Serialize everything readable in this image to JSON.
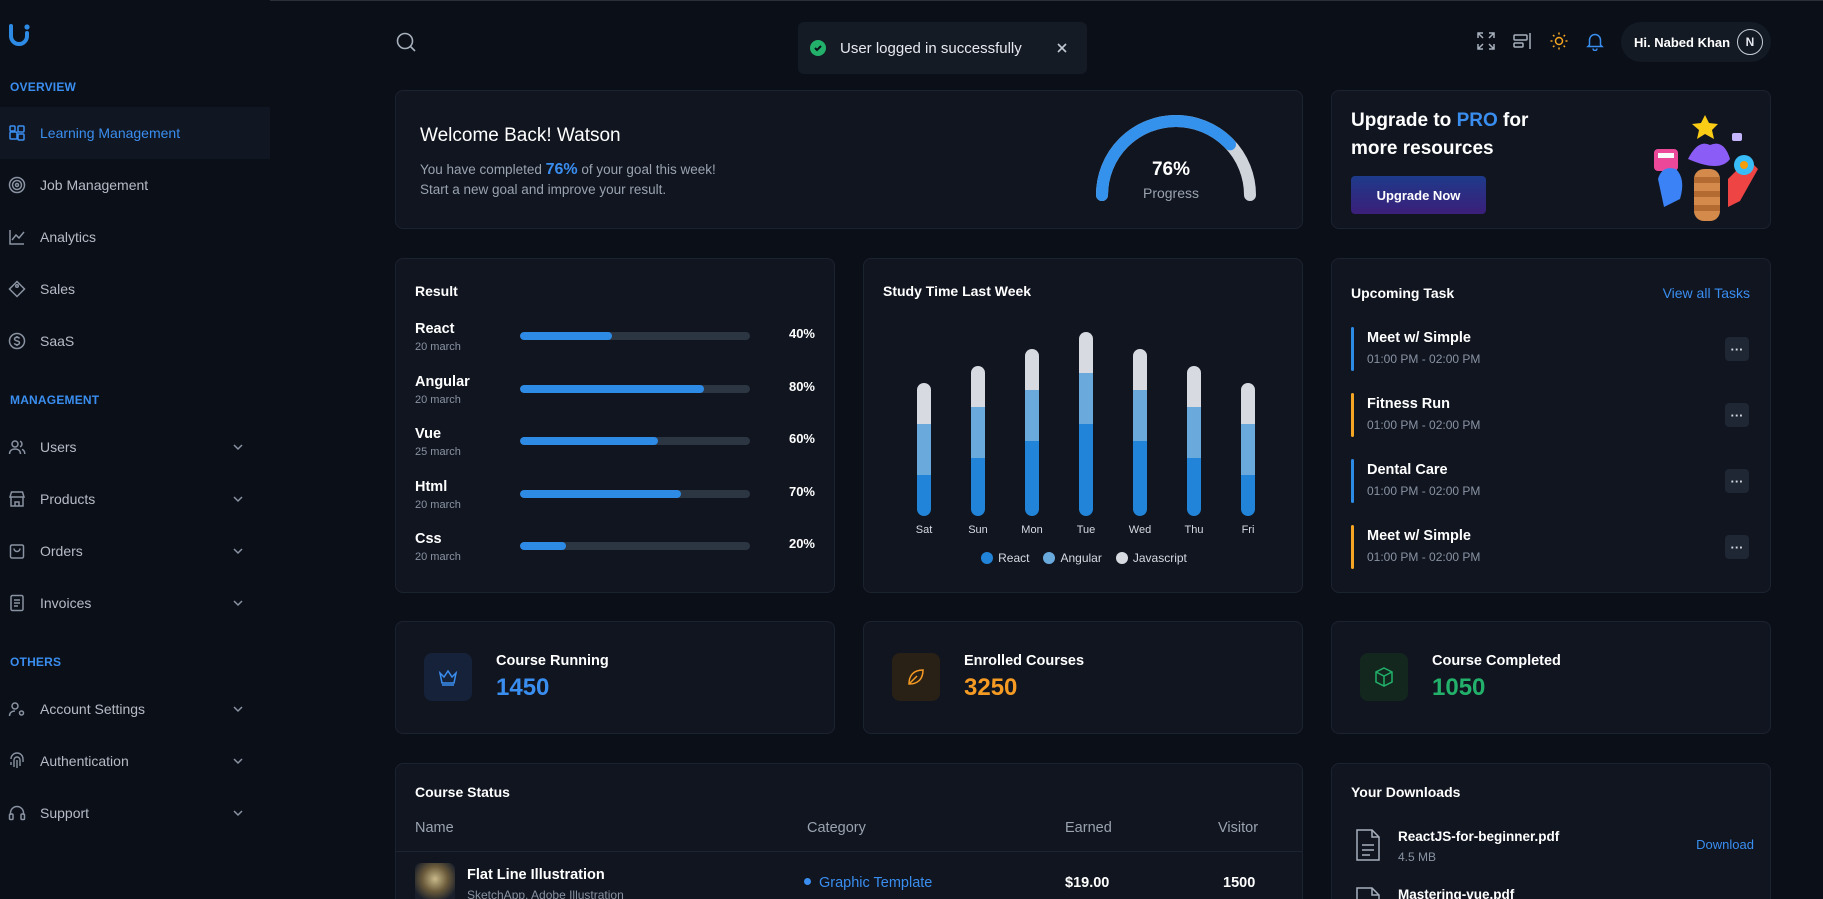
{
  "sidebar": {
    "sections": [
      "OVERVIEW",
      "MANAGEMENT",
      "OTHERS"
    ],
    "overview": [
      {
        "label": "Learning Management",
        "icon": "grid-icon"
      },
      {
        "label": "Job Management",
        "icon": "target-icon"
      },
      {
        "label": "Analytics",
        "icon": "chart-icon"
      },
      {
        "label": "Sales",
        "icon": "tag-icon"
      },
      {
        "label": "SaaS",
        "icon": "dollar-icon"
      }
    ],
    "management": [
      {
        "label": "Users",
        "icon": "users-icon"
      },
      {
        "label": "Products",
        "icon": "store-icon"
      },
      {
        "label": "Orders",
        "icon": "bag-icon"
      },
      {
        "label": "Invoices",
        "icon": "invoice-icon"
      }
    ],
    "others": [
      {
        "label": "Account Settings",
        "icon": "user-settings-icon"
      },
      {
        "label": "Authentication",
        "icon": "fingerprint-icon"
      },
      {
        "label": "Support",
        "icon": "headset-icon"
      }
    ]
  },
  "header": {
    "toast": "User logged in successfully",
    "user_name": "Hi. Nabed Khan",
    "avatar_initial": "N"
  },
  "welcome": {
    "title": "Welcome Back! Watson",
    "line1_pre": "You have completed",
    "line1_pct": "76%",
    "line1_post": "of your goal this week!",
    "line2": "Start a new goal and improve your result.",
    "progress_value": "76%",
    "progress_label": "Progress",
    "progress_fraction": 0.76
  },
  "upgrade": {
    "title_pre": "Upgrade to",
    "title_pro": "PRO",
    "title_post": "for more resources",
    "button": "Upgrade Now"
  },
  "result": {
    "title": "Result",
    "rows": [
      {
        "name": "React",
        "date": "20 march",
        "pct": "40%",
        "value": 0.4
      },
      {
        "name": "Angular",
        "date": "20 march",
        "pct": "80%",
        "value": 0.8
      },
      {
        "name": "Vue",
        "date": "25 march",
        "pct": "60%",
        "value": 0.6
      },
      {
        "name": "Html",
        "date": "20 march",
        "pct": "70%",
        "value": 0.7
      },
      {
        "name": "Css",
        "date": "20 march",
        "pct": "20%",
        "value": 0.2
      }
    ]
  },
  "chart_data": {
    "type": "bar",
    "title": "Study Time Last Week",
    "categories": [
      "Sat",
      "Sun",
      "Mon",
      "Tue",
      "Wed",
      "Thu",
      "Fri"
    ],
    "stacked": true,
    "ylim": [
      0,
      10
    ],
    "series": [
      {
        "name": "React",
        "color": "#2184d8",
        "values": [
          2,
          3,
          4,
          5,
          4,
          3,
          2
        ]
      },
      {
        "name": "Angular",
        "color": "#6aa9dc",
        "values": [
          3,
          3,
          3,
          3,
          3,
          3,
          3
        ]
      },
      {
        "name": "Javascript",
        "color": "#d7dbe1",
        "values": [
          2,
          2,
          2,
          2,
          2,
          2,
          2
        ]
      }
    ],
    "legend": "bottom"
  },
  "tasks": {
    "title": "Upcoming Task",
    "view_all": "View all Tasks",
    "items": [
      {
        "name": "Meet w/ Simple",
        "time": "01:00 PM - 02:00 PM",
        "color": "#2d8be6"
      },
      {
        "name": "Fitness Run",
        "time": "01:00 PM - 02:00 PM",
        "color": "#f5a524"
      },
      {
        "name": "Dental Care",
        "time": "01:00 PM - 02:00 PM",
        "color": "#2d8be6"
      },
      {
        "name": "Meet w/ Simple",
        "time": "01:00 PM - 02:00 PM",
        "color": "#f5a524"
      }
    ],
    "more": "···"
  },
  "stats": [
    {
      "label": "Course Running",
      "value": "1450",
      "color": "#3a8ef0",
      "bg": "#15223a",
      "icon": "crown-icon"
    },
    {
      "label": "Enrolled Courses",
      "value": "3250",
      "color": "#f59a23",
      "bg": "#2a2116",
      "icon": "leaf-icon"
    },
    {
      "label": "Course Completed",
      "value": "1050",
      "color": "#22b06a",
      "bg": "#13271f",
      "icon": "box-icon"
    }
  ],
  "course_status": {
    "title": "Course Status",
    "columns": [
      "Name",
      "Category",
      "Earned",
      "Visitor"
    ],
    "rows": [
      {
        "name": "Flat Line Illustration",
        "sub": "SketchApp, Adobe Illustration",
        "category": "Graphic Template",
        "earned": "$19.00",
        "visitor": "1500"
      }
    ]
  },
  "downloads": {
    "title": "Your Downloads",
    "items": [
      {
        "name": "ReactJS-for-beginner.pdf",
        "size": "4.5 MB",
        "link": "Download"
      },
      {
        "name": "Mastering-vue.pdf",
        "size": "",
        "link": ""
      }
    ]
  }
}
